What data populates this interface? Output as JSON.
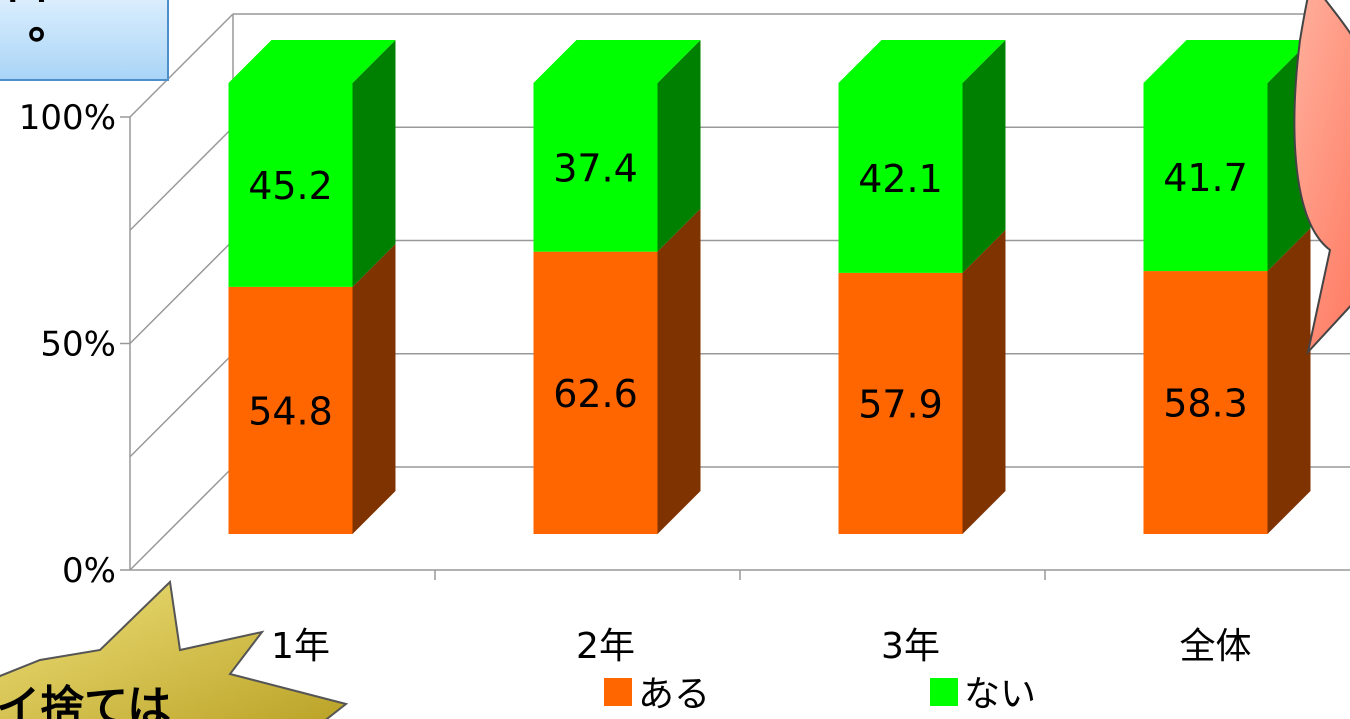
{
  "chart_data": {
    "type": "bar",
    "stacked": true,
    "percent_stacked": true,
    "three_d": true,
    "categories": [
      "1年",
      "2年",
      "3年",
      "全体"
    ],
    "series": [
      {
        "name": "ある",
        "values": [
          54.8,
          62.6,
          57.9,
          58.3
        ],
        "color": "#ff6600",
        "side_color": "#7f3300"
      },
      {
        "name": "ない",
        "values": [
          45.2,
          37.4,
          42.1,
          41.7
        ],
        "color": "#00ff00",
        "side_color": "#008000"
      }
    ],
    "y_ticks": [
      "0%",
      "50%",
      "100%"
    ],
    "ylim": [
      0,
      100
    ],
    "grid": true,
    "legend_position": "bottom"
  },
  "annotations": {
    "top_left_box_text": "。",
    "bottom_left_callout_text": "イ捨ては"
  },
  "colors": {
    "top_left_box_fill": "#cce8ff",
    "top_left_box_border": "#5a9bd5",
    "callout_fill": "#d6c44a",
    "speech_fill": "#ff8a70"
  }
}
